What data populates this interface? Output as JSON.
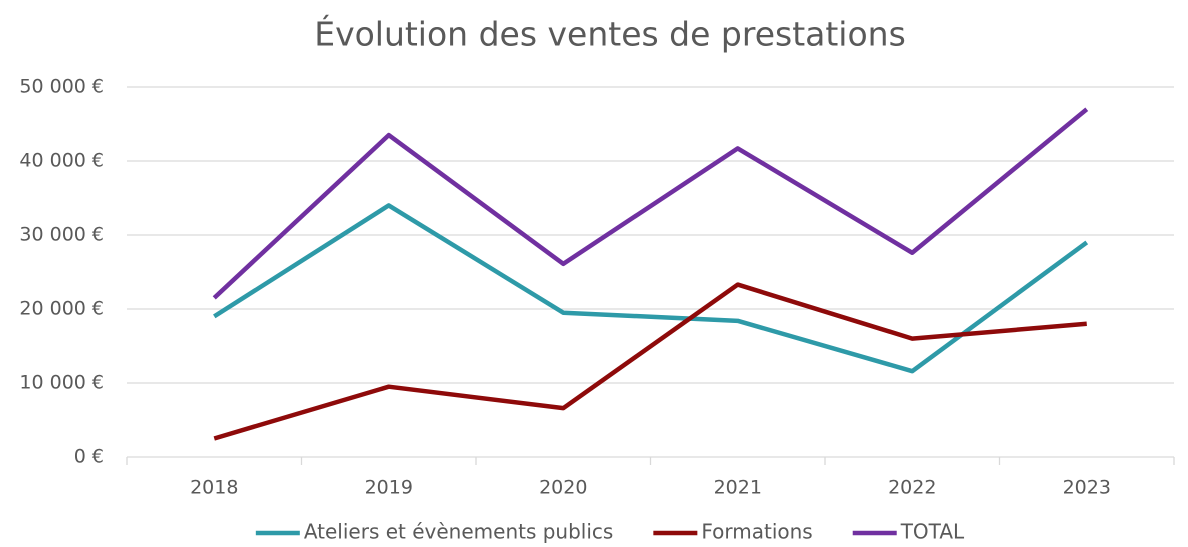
{
  "chart_data": {
    "type": "line",
    "title": "Évolution des ventes de prestations",
    "categories": [
      "2018",
      "2019",
      "2020",
      "2021",
      "2022",
      "2023"
    ],
    "series": [
      {
        "name": "Ateliers et évènements publics",
        "color": "#2e9aa8",
        "values": [
          19000,
          34000,
          19500,
          18400,
          11600,
          29000
        ]
      },
      {
        "name": "Formations",
        "color": "#8e0a0a",
        "values": [
          2500,
          9500,
          6600,
          23300,
          16000,
          18000
        ]
      },
      {
        "name": "TOTAL",
        "color": "#7030a0",
        "values": [
          21500,
          43500,
          26100,
          41700,
          27600,
          47000
        ]
      }
    ],
    "ylim": [
      0,
      50000
    ],
    "yticks": [
      {
        "value": 0,
        "label": "0 €"
      },
      {
        "value": 10000,
        "label": "10 000 €"
      },
      {
        "value": 20000,
        "label": "20 000 €"
      },
      {
        "value": 30000,
        "label": "30 000 €"
      },
      {
        "value": 40000,
        "label": "40 000 €"
      },
      {
        "value": 50000,
        "label": "50 000 €"
      }
    ],
    "grid": true,
    "legend": "bottom"
  }
}
